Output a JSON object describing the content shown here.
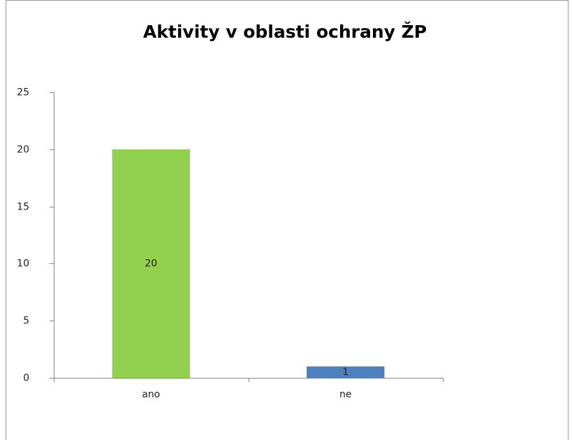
{
  "chart_data": {
    "type": "bar",
    "title": "Aktivity v oblasti ochrany ŽP",
    "categories": [
      "ano",
      "ne"
    ],
    "values": [
      20,
      1
    ],
    "colors": [
      "#92d050",
      "#4f81bd"
    ],
    "ylim": [
      0,
      25
    ],
    "yticks": [
      0,
      5,
      10,
      15,
      20,
      25
    ],
    "grid": false
  }
}
